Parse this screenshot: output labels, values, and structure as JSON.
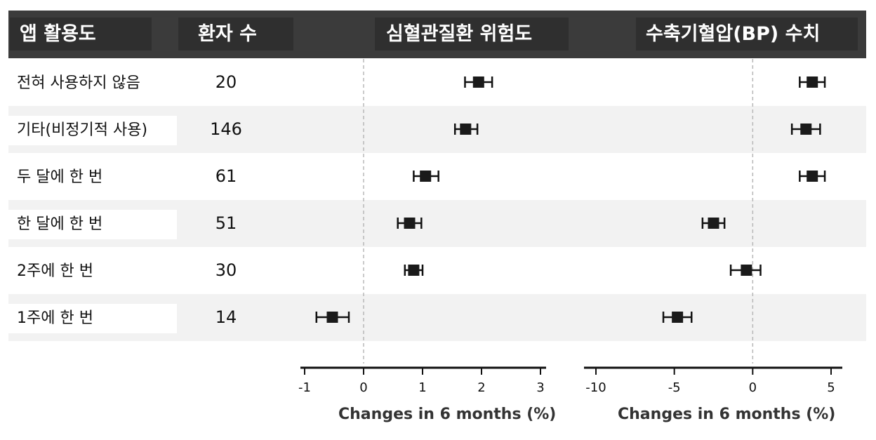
{
  "headers": {
    "usage": "앱 활용도",
    "count": "환자 수",
    "cv_risk": "심혈관질환 위험도",
    "sbp": "수축기혈압(BP) 수치"
  },
  "rows": [
    {
      "label": "전혀 사용하지 않음",
      "n": "20"
    },
    {
      "label": "기타(비정기적 사용)",
      "n": "146"
    },
    {
      "label": "두 달에 한 번",
      "n": "61"
    },
    {
      "label": "한 달에 한 번",
      "n": "51"
    },
    {
      "label": "2주에 한 번",
      "n": "30"
    },
    {
      "label": "1주에 한 번",
      "n": "14"
    }
  ],
  "colors": {
    "header_bg": "#3b3b3b",
    "header_cell": "#2f2f2f",
    "row_alt": "#f2f2f2",
    "marker": "#1a1a1a"
  },
  "chart_data": [
    {
      "type": "forest",
      "title": "심혈관질환 위험도",
      "xlabel": "Changes in 6 months (%)",
      "xlim": [
        -1,
        3
      ],
      "ticks": [
        -1,
        0,
        1,
        2,
        3
      ],
      "reference_line": 0,
      "categories": [
        "전혀 사용하지 않음",
        "기타(비정기적 사용)",
        "두 달에 한 번",
        "한 달에 한 번",
        "2주에 한 번",
        "1주에 한 번"
      ],
      "estimates": [
        1.95,
        1.73,
        1.05,
        0.78,
        0.85,
        -0.53
      ],
      "lower": [
        1.72,
        1.55,
        0.85,
        0.58,
        0.7,
        -0.8
      ],
      "upper": [
        2.18,
        1.93,
        1.27,
        0.98,
        1.0,
        -0.25
      ]
    },
    {
      "type": "forest",
      "title": "수축기혈압(BP) 수치",
      "xlabel": "Changes in 6 months (%)",
      "xlim": [
        -10,
        5
      ],
      "ticks": [
        -10,
        -5,
        0,
        5
      ],
      "reference_line": 0,
      "categories": [
        "전혀 사용하지 않음",
        "기타(비정기적 사용)",
        "두 달에 한 번",
        "한 달에 한 번",
        "2주에 한 번",
        "1주에 한 번"
      ],
      "estimates": [
        3.8,
        3.4,
        3.8,
        -2.5,
        -0.4,
        -4.8
      ],
      "lower": [
        3.0,
        2.5,
        3.0,
        -3.2,
        -1.4,
        -5.7
      ],
      "upper": [
        4.6,
        4.3,
        4.6,
        -1.8,
        0.5,
        -3.9
      ]
    }
  ]
}
